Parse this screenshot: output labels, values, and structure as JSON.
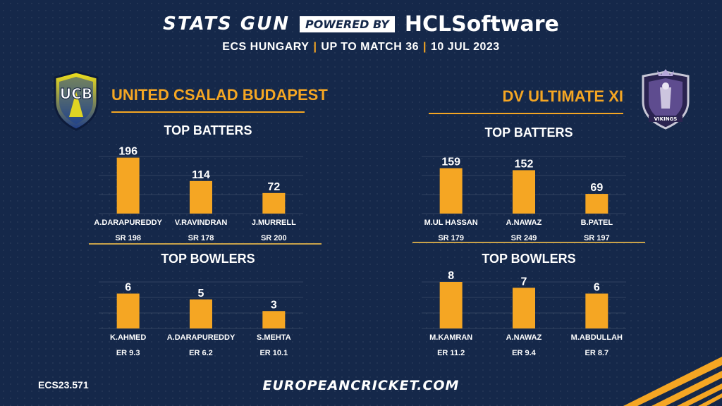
{
  "header": {
    "brand": "STATS GUN",
    "powered_by": "POWERED BY",
    "sponsor": "HCLSoftware",
    "subtitle_parts": [
      "ECS HUNGARY",
      "UP TO MATCH 36",
      "10 JUL 2023"
    ]
  },
  "colors": {
    "accent": "#f5a623",
    "background": "#15284a",
    "text": "#ffffff"
  },
  "teams": {
    "left": {
      "name": "UNITED CSALAD BUDAPEST",
      "logo_text": "UCB"
    },
    "right": {
      "name": "DV ULTIMATE XI",
      "logo_text": "VIKINGS"
    }
  },
  "sections": {
    "batters_title": "TOP BATTERS",
    "bowlers_title": "TOP BOWLERS"
  },
  "chart_data": [
    {
      "type": "bar",
      "id": "left-batters",
      "team": "UNITED CSALAD BUDAPEST",
      "title": "TOP BATTERS",
      "categories": [
        "A.DARAPUREDDY",
        "V.RAVINDRAN",
        "J.MURRELL"
      ],
      "values": [
        196,
        114,
        72
      ],
      "sublabels": [
        "SR 198",
        "SR 178",
        "SR 200"
      ],
      "ylim": [
        0,
        200
      ],
      "grid": true
    },
    {
      "type": "bar",
      "id": "right-batters",
      "team": "DV ULTIMATE XI",
      "title": "TOP BATTERS",
      "categories": [
        "M.UL HASSAN",
        "A.NAWAZ",
        "B.PATEL"
      ],
      "values": [
        159,
        152,
        69
      ],
      "sublabels": [
        "SR 179",
        "SR 249",
        "SR 197"
      ],
      "ylim": [
        0,
        200
      ],
      "grid": true
    },
    {
      "type": "bar",
      "id": "left-bowlers",
      "team": "UNITED CSALAD BUDAPEST",
      "title": "TOP BOWLERS",
      "categories": [
        "K.AHMED",
        "A.DARAPUREDDY",
        "S.MEHTA"
      ],
      "values": [
        6,
        5,
        3
      ],
      "sublabels": [
        "ER 9.3",
        "ER 6.2",
        "ER 10.1"
      ],
      "ylim": [
        0,
        8
      ],
      "grid": true
    },
    {
      "type": "bar",
      "id": "right-bowlers",
      "team": "DV ULTIMATE XI",
      "title": "TOP BOWLERS",
      "categories": [
        "M.KAMRAN",
        "A.NAWAZ",
        "M.ABDULLAH"
      ],
      "values": [
        8,
        7,
        6
      ],
      "sublabels": [
        "ER 11.2",
        "ER 9.4",
        "ER 8.7"
      ],
      "ylim": [
        0,
        8
      ],
      "grid": true
    }
  ],
  "footer": {
    "code": "ECS23.571",
    "website": "EUROPEANCRICKET.COM"
  }
}
